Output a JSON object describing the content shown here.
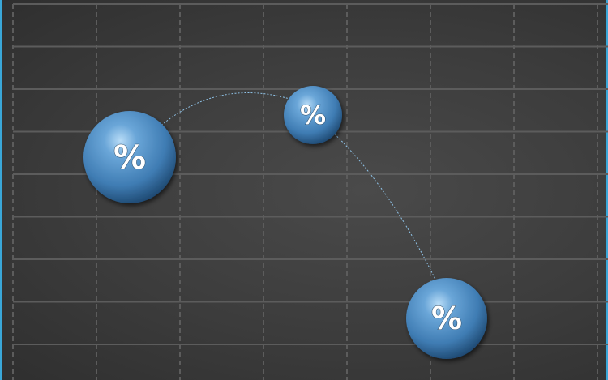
{
  "graphic": {
    "sphere_color": "#4f8fc6",
    "line_color": "#8fc3e8",
    "border_color": "#3aa7d8",
    "spheres": [
      {
        "label": "%"
      },
      {
        "label": "%"
      },
      {
        "label": "%"
      }
    ]
  }
}
